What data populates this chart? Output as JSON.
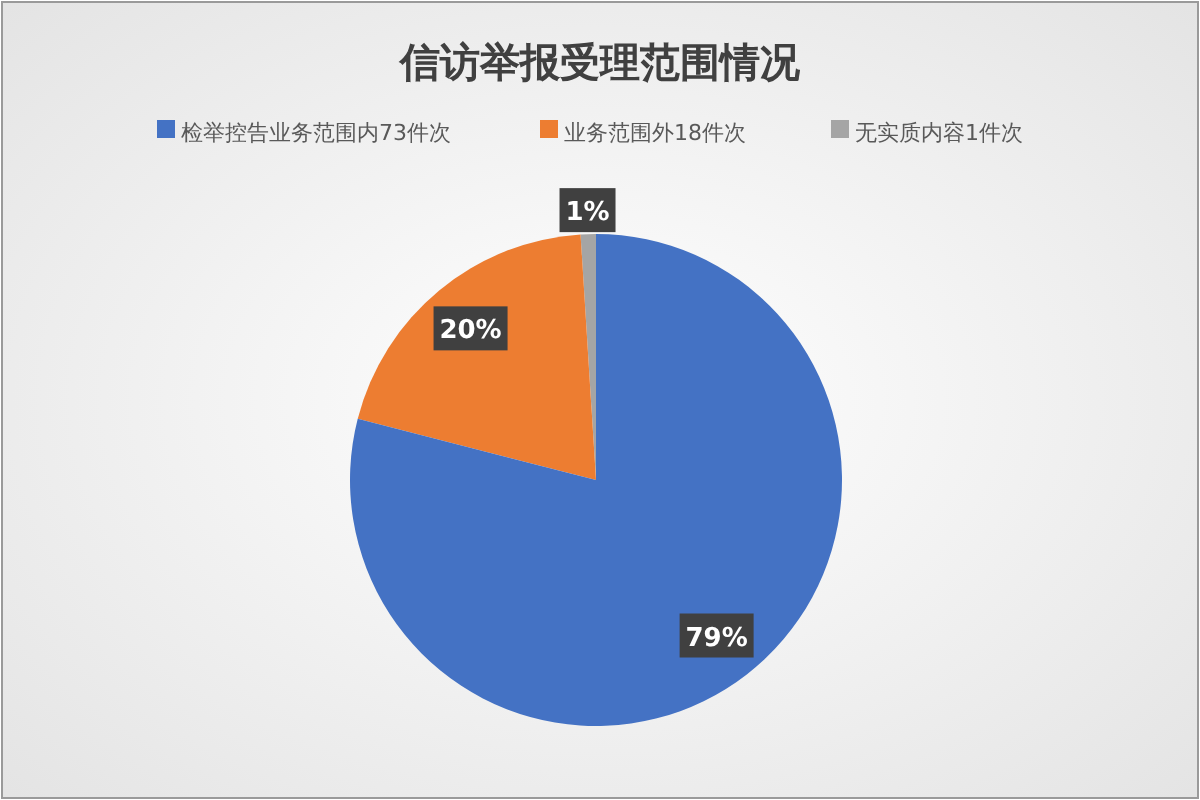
{
  "chart_data": {
    "type": "pie",
    "title": "信访举报受理范围情况",
    "categories": [
      "检举控告业务范围内73件次",
      "业务范围外18件次",
      "无实质内容1件次"
    ],
    "values": [
      79,
      20,
      1
    ],
    "colors": [
      "#4472c4",
      "#ed7d31",
      "#a5a5a5"
    ],
    "value_labels": [
      "79%",
      "20%",
      "1%"
    ],
    "legend": "top"
  }
}
